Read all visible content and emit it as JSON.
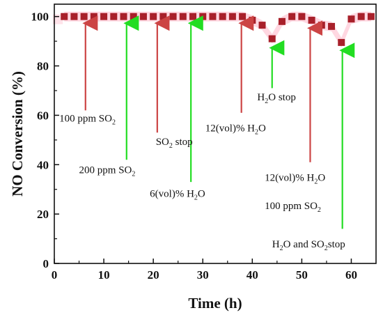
{
  "chart_data": {
    "type": "scatter",
    "xlabel": "Time (h)",
    "ylabel": "NO Conversion  (%)",
    "xlim": [
      0,
      65
    ],
    "ylim": [
      0,
      105
    ],
    "xticks": [
      "0",
      "10",
      "20",
      "30",
      "40",
      "50",
      "60"
    ],
    "yticks": [
      "0",
      "20",
      "40",
      "60",
      "80",
      "100"
    ],
    "grid": false,
    "marker_color": "#a8202a",
    "band_color": "#ffd0dc",
    "series": [
      {
        "x": [
          2,
          4,
          6,
          8,
          10,
          12,
          14,
          16,
          18,
          20,
          22,
          24,
          26,
          28,
          30,
          32,
          34,
          36,
          38,
          40,
          42,
          44,
          46,
          48,
          50,
          52,
          54,
          56,
          58,
          60,
          62,
          64
        ],
        "y": [
          100,
          100,
          100,
          100,
          100,
          100,
          100,
          100,
          100,
          100,
          100,
          100,
          100,
          100,
          100,
          100,
          100,
          100,
          100,
          98.5,
          96.5,
          91,
          98,
          100,
          100,
          98.5,
          96.5,
          96,
          89.5,
          99,
          100,
          100
        ]
      }
    ],
    "annotations": [
      {
        "key": "a100so2",
        "color": "#cc4444",
        "arrow_x": 6.3,
        "arrow_y_from": 62,
        "arrow_y_to": 99,
        "parts": [
          [
            "100 ppm SO",
            ""
          ],
          [
            "2",
            "sub"
          ]
        ],
        "text_x": 1.0,
        "text_y": 57.5
      },
      {
        "key": "a200so2",
        "color": "#22dd22",
        "arrow_x": 14.6,
        "arrow_y_from": 42,
        "arrow_y_to": 99,
        "parts": [
          [
            "200 ppm SO",
            ""
          ],
          [
            "2",
            "sub"
          ]
        ],
        "text_x": 5.0,
        "text_y": 36.5
      },
      {
        "key": "aso2stop",
        "color": "#cc4444",
        "arrow_x": 20.8,
        "arrow_y_from": 53,
        "arrow_y_to": 99,
        "parts": [
          [
            "SO",
            ""
          ],
          [
            "2",
            "sub"
          ],
          [
            " stop",
            ""
          ]
        ],
        "text_x": 20.5,
        "text_y": 48.0
      },
      {
        "key": "a6h2o",
        "color": "#22dd22",
        "arrow_x": 27.6,
        "arrow_y_from": 33,
        "arrow_y_to": 99,
        "parts": [
          [
            "6(vol)% H",
            ""
          ],
          [
            "2",
            "sub"
          ],
          [
            "O",
            ""
          ]
        ],
        "text_x": 19.3,
        "text_y": 27.0
      },
      {
        "key": "a12h2o",
        "color": "#cc4444",
        "arrow_x": 37.8,
        "arrow_y_from": 61,
        "arrow_y_to": 99,
        "parts": [
          [
            "12(vol)% H",
            ""
          ],
          [
            "2",
            "sub"
          ],
          [
            "O",
            ""
          ]
        ],
        "text_x": 30.5,
        "text_y": 53.5
      },
      {
        "key": "ah2ostop",
        "color": "#22dd22",
        "arrow_x": 44.0,
        "arrow_y_from": 71,
        "arrow_y_to": 89,
        "parts": [
          [
            "H",
            ""
          ],
          [
            "2",
            "sub"
          ],
          [
            "O stop",
            ""
          ]
        ],
        "text_x": 41.0,
        "text_y": 66.0
      },
      {
        "key": "a12h2o2",
        "color": "#cc4444",
        "arrow_x": 51.7,
        "arrow_y_from": 41,
        "arrow_y_to": 97,
        "parts": [
          [
            "12(vol)% H",
            ""
          ],
          [
            "2",
            "sub"
          ],
          [
            "O",
            ""
          ]
        ],
        "text_x": 42.5,
        "text_y": 33.5
      },
      {
        "key": "a100so2b",
        "color": "#cc4444",
        "arrow_x": null,
        "arrow_y_from": null,
        "arrow_y_to": null,
        "parts": [
          [
            "100 ppm SO",
            ""
          ],
          [
            "2",
            "sub"
          ]
        ],
        "text_x": 42.5,
        "text_y": 22.0
      },
      {
        "key": "ah2oso2stop",
        "color": "#22dd22",
        "arrow_x": 58.2,
        "arrow_y_from": 14,
        "arrow_y_to": 88,
        "parts": [
          [
            "H",
            ""
          ],
          [
            "2",
            "sub"
          ],
          [
            "O and SO",
            ""
          ],
          [
            "2",
            "sub"
          ],
          [
            "stop",
            ""
          ]
        ],
        "text_x": 44.0,
        "text_y": 6.5
      }
    ]
  }
}
